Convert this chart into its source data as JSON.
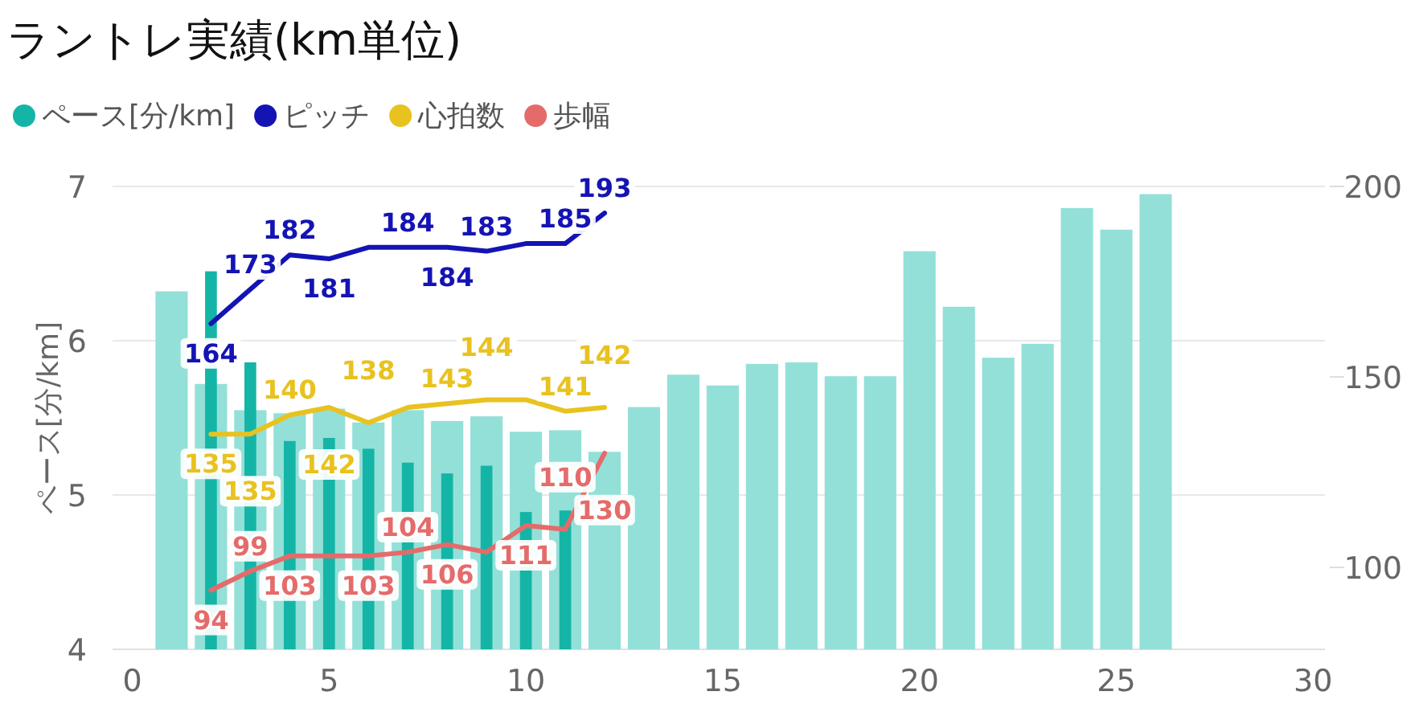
{
  "chart_data": {
    "type": "bar",
    "title": "ラントレ実績(km単位)",
    "ylabel": "ペース[分/km]",
    "xlim": [
      -0.5,
      30.3
    ],
    "xticks": [
      0,
      5,
      10,
      15,
      20,
      25,
      30
    ],
    "ylim": [
      4,
      7
    ],
    "yticks": [
      4,
      5,
      6,
      7
    ],
    "y2lim": [
      78.5,
      200
    ],
    "y2ticks": [
      100,
      150,
      200
    ],
    "grid": "y",
    "legend": "top left",
    "series": [
      {
        "color": "#93e0d8",
        "x": [
          1,
          2,
          3,
          4,
          5,
          6,
          7,
          8,
          9,
          10,
          11,
          12,
          13,
          14,
          15,
          16,
          17,
          18,
          19,
          20,
          21,
          22,
          23,
          24,
          25,
          26
        ],
        "values": [
          6.32,
          5.72,
          5.55,
          5.53,
          5.56,
          5.47,
          5.55,
          5.48,
          5.51,
          5.41,
          5.42,
          5.28,
          5.57,
          5.78,
          5.71,
          5.85,
          5.86,
          5.77,
          5.77,
          6.58,
          6.22,
          5.89,
          5.98,
          6.86,
          6.72,
          6.95
        ]
      },
      {
        "type": "bar",
        "name": "ペース[分/km]",
        "color": "#14b5a6",
        "x": [
          2,
          3,
          4,
          5,
          6,
          7,
          8,
          9,
          10,
          11
        ],
        "values": [
          6.45,
          5.86,
          5.35,
          5.37,
          5.3,
          5.21,
          5.14,
          5.19,
          4.89,
          4.9
        ]
      },
      {
        "type": "line",
        "name": "ピッチ",
        "color": "#1414b4",
        "axis": "y2",
        "x": [
          2,
          3,
          4,
          5,
          6,
          7,
          8,
          9,
          10,
          11,
          12
        ],
        "values": [
          164,
          173,
          182,
          181,
          184,
          184,
          184,
          183,
          185,
          185,
          193
        ],
        "value_labels": [
          "164",
          "173",
          "182",
          "181",
          null,
          "184",
          "184",
          "183",
          null,
          "185",
          "193"
        ]
      },
      {
        "type": "line",
        "name": "心拍数",
        "color": "#e8c21f",
        "axis": "y2",
        "x": [
          2,
          3,
          4,
          5,
          6,
          7,
          8,
          9,
          10,
          11,
          12
        ],
        "values": [
          135,
          135,
          140,
          142,
          138,
          142,
          143,
          144,
          144,
          141,
          142
        ],
        "value_labels": [
          "135",
          "135",
          "140",
          "142",
          "138",
          null,
          "143",
          "144",
          null,
          "141",
          "142"
        ]
      },
      {
        "type": "line",
        "name": "歩幅",
        "color": "#e56b6b",
        "axis": "y2",
        "x": [
          2,
          3,
          4,
          5,
          6,
          7,
          8,
          9,
          10,
          11,
          12
        ],
        "values": [
          94,
          99,
          103,
          103,
          103,
          104,
          106,
          104,
          111,
          110,
          130
        ],
        "value_labels": [
          "94",
          "99",
          "103",
          null,
          "103",
          "104",
          "106",
          null,
          "111",
          "110",
          "130"
        ]
      }
    ]
  }
}
